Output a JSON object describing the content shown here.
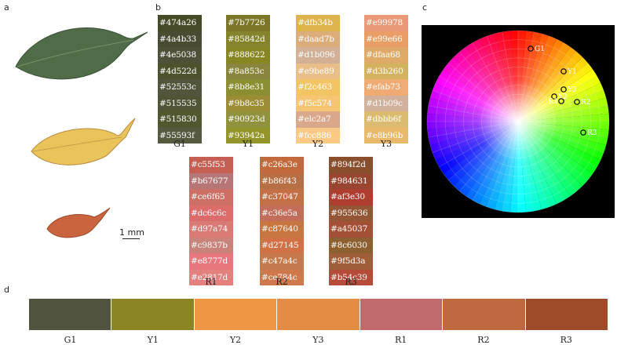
{
  "panels": {
    "a": "a",
    "b": "b",
    "c": "c",
    "d": "d"
  },
  "leaves": {
    "green_color": "#4f6b48",
    "yellow_color": "#e9c45a",
    "red_color": "#c9643f",
    "scale_label": "1 mm"
  },
  "top_columns": [
    {
      "name": "G1",
      "codes": [
        "#474a26",
        "#4a4b33",
        "#4e5038",
        "#4d522d",
        "#52553c",
        "#515535",
        "#515830",
        "#55593f"
      ]
    },
    {
      "name": "Y1",
      "codes": [
        "#7b7726",
        "#85842d",
        "#888622",
        "#8a853c",
        "#8b8e31",
        "#9b8c35",
        "#90923d",
        "#93942a"
      ]
    },
    {
      "name": "Y2",
      "codes": [
        "#dfb34b",
        "#daad7b",
        "#d1b096",
        "#e9be89",
        "#f2c463",
        "#f5c574",
        "#elc2a7",
        "#fcc886"
      ]
    },
    {
      "name": "Y3",
      "codes": [
        "#e99978",
        "#e99e66",
        "#dfaa68",
        "#d3b260",
        "#efab73",
        "#d1b09c",
        "#dbbb6f",
        "#e8b96b"
      ]
    }
  ],
  "bottom_columns": [
    {
      "name": "R1",
      "codes": [
        "#c55f53",
        "#b67677",
        "#ce6f65",
        "#dc6c6c",
        "#d97a74",
        "#c9837b",
        "#e8777d",
        "#e2817d"
      ]
    },
    {
      "name": "R2",
      "codes": [
        "#c26a3e",
        "#b86f43",
        "#c37047",
        "#c36e5a",
        "#c87640",
        "#d27145",
        "#c47a4c",
        "#ce784c"
      ]
    },
    {
      "name": "R3",
      "codes": [
        "#894f2d",
        "#984631",
        "#af3e30",
        "#955636",
        "#a45037",
        "#8c6030",
        "#9f5d3a",
        "#b54c39"
      ]
    }
  ],
  "wheel_points": [
    {
      "label": "G1"
    },
    {
      "label": "Y1"
    },
    {
      "label": "Y3"
    },
    {
      "label": "Y2"
    },
    {
      "label": "R1"
    },
    {
      "label": "R2"
    },
    {
      "label": "R3"
    }
  ],
  "bar": [
    {
      "label": "G1",
      "color": "#50533e"
    },
    {
      "label": "Y1",
      "color": "#8c8526"
    },
    {
      "label": "Y2",
      "color": "#ee9644"
    },
    {
      "label": "Y3",
      "color": "#e28d43"
    },
    {
      "label": "R1",
      "color": "#c06a6c"
    },
    {
      "label": "R2",
      "color": "#c0683f"
    },
    {
      "label": "R3",
      "color": "#9c4a28"
    }
  ]
}
